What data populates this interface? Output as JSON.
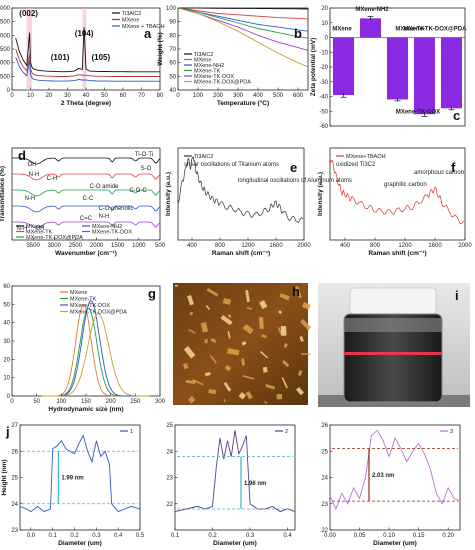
{
  "figure": {
    "panels": [
      {
        "id": "a",
        "label": "a"
      },
      {
        "id": "b",
        "label": "b"
      },
      {
        "id": "c",
        "label": "c"
      },
      {
        "id": "d",
        "label": "d"
      },
      {
        "id": "e",
        "label": "e"
      },
      {
        "id": "f",
        "label": "f"
      },
      {
        "id": "g",
        "label": "g"
      },
      {
        "id": "h",
        "label": "h"
      },
      {
        "id": "i",
        "label": "i"
      },
      {
        "id": "j",
        "label": "j"
      }
    ]
  },
  "chart_data": [
    {
      "panel": "a",
      "type": "line",
      "title": "",
      "xlabel": "2 Theta (degree)",
      "ylabel": "Intensity (a.u.)",
      "xlim": [
        0,
        80
      ],
      "ylim": [
        0,
        3000
      ],
      "xticks": [
        0,
        10,
        20,
        30,
        40,
        50,
        60,
        70,
        80
      ],
      "yticks": [
        0,
        500,
        1000,
        1500,
        2000,
        2500,
        3000
      ],
      "legend_position": "top-right",
      "series": [
        {
          "name": "Ti3AlC2",
          "color": "#111111",
          "x": [
            2,
            4,
            6,
            8,
            9.5,
            10,
            11,
            12,
            14,
            18,
            22,
            26,
            30,
            34,
            36,
            38,
            39,
            40,
            42,
            46,
            50,
            55,
            60,
            65,
            70,
            75,
            80
          ],
          "y": [
            1900,
            1400,
            1100,
            900,
            2100,
            1000,
            800,
            760,
            720,
            690,
            680,
            670,
            670,
            700,
            790,
            750,
            2300,
            760,
            690,
            680,
            675,
            670,
            670,
            665,
            665,
            665,
            665
          ]
        },
        {
          "name": "MXene",
          "color": "#b0353a",
          "x": [
            2,
            4,
            6,
            8,
            9.5,
            10,
            11,
            12,
            14,
            18,
            22,
            26,
            30,
            34,
            36,
            38,
            40,
            42,
            46,
            50,
            55,
            60,
            65,
            70,
            75,
            80
          ],
          "y": [
            1500,
            1100,
            850,
            700,
            1300,
            750,
            600,
            560,
            530,
            510,
            500,
            495,
            495,
            520,
            560,
            540,
            540,
            520,
            505,
            500,
            495,
            495,
            495,
            495,
            495,
            495
          ]
        },
        {
          "name": "MXene + TBAOH",
          "color": "#2f58c8",
          "x": [
            2,
            4,
            6,
            8,
            9.5,
            10,
            11,
            12,
            14,
            18,
            22,
            26,
            30,
            34,
            36,
            38,
            40,
            42,
            46,
            50,
            55,
            60,
            65,
            70,
            75,
            80
          ],
          "y": [
            1200,
            850,
            650,
            520,
            1100,
            560,
            420,
            390,
            360,
            340,
            330,
            325,
            325,
            345,
            385,
            365,
            365,
            345,
            330,
            325,
            322,
            322,
            322,
            322,
            322,
            322
          ]
        }
      ],
      "annotations": [
        "(002)",
        "(101)",
        "(104)",
        "(105)"
      ]
    },
    {
      "panel": "b",
      "type": "line",
      "title": "",
      "xlabel": "Temperature (°C)",
      "ylabel": "Weight (%)",
      "xlim": [
        0,
        650
      ],
      "ylim": [
        40,
        100
      ],
      "xticks": [
        0,
        100,
        200,
        300,
        400,
        500,
        600
      ],
      "yticks": [
        40,
        50,
        60,
        70,
        80,
        90,
        100
      ],
      "legend_position": "bottom-left",
      "series": [
        {
          "name": "Ti3AlC2",
          "color": "#111111",
          "x": [
            0,
            100,
            200,
            300,
            400,
            500,
            600,
            650
          ],
          "y": [
            100,
            100,
            99.8,
            99.7,
            99.6,
            99.5,
            99.4,
            99.3
          ]
        },
        {
          "name": "MXene",
          "color": "#e0414a",
          "x": [
            0,
            100,
            200,
            300,
            400,
            500,
            600,
            650
          ],
          "y": [
            100,
            98,
            96,
            95,
            94,
            93,
            92.5,
            92
          ]
        },
        {
          "name": "MXene-NH2",
          "color": "#2f58c8",
          "x": [
            0,
            100,
            200,
            300,
            400,
            500,
            600,
            650
          ],
          "y": [
            100,
            97,
            94,
            91,
            88,
            86,
            84,
            83
          ]
        },
        {
          "name": "MXene-TK",
          "color": "#1f9d4a",
          "x": [
            0,
            100,
            200,
            300,
            400,
            500,
            600,
            650
          ],
          "y": [
            100,
            97,
            93,
            89,
            85,
            82,
            79,
            78
          ]
        },
        {
          "name": "MXene-TK-DOX",
          "color": "#9c3fd1",
          "x": [
            0,
            100,
            200,
            300,
            400,
            500,
            600,
            650
          ],
          "y": [
            100,
            96,
            91,
            86,
            80,
            75,
            71,
            69
          ]
        },
        {
          "name": "MXene-TK-DOX@PDA",
          "color": "#c8a02a",
          "x": [
            0,
            100,
            200,
            300,
            400,
            500,
            600,
            650
          ],
          "y": [
            100,
            96,
            90,
            83,
            75,
            67,
            60,
            57
          ]
        }
      ]
    },
    {
      "panel": "c",
      "type": "bar",
      "title": "",
      "xlabel": "",
      "ylabel": "Zeta potential (mV)",
      "ylim": [
        -60,
        20
      ],
      "yticks": [
        -60,
        -50,
        -40,
        -30,
        -20,
        -10,
        0,
        10,
        20
      ],
      "categories": [
        "MXene",
        "MXene-NH2",
        "MXene-TK",
        "MXene-TK-DOX",
        "MXene-TK-DOX@PDA"
      ],
      "values": [
        -39,
        13,
        -42,
        -52,
        -48
      ],
      "errors": [
        1.5,
        1.2,
        1.0,
        1.5,
        1.0
      ],
      "color": "#8a2be2"
    },
    {
      "panel": "d",
      "type": "line",
      "title": "",
      "xlabel": "Wavenumber (cm⁻¹)",
      "ylabel": "Transmittance (%)",
      "xlim": [
        4000,
        500
      ],
      "xticks": [
        3500,
        3000,
        2500,
        2000,
        1500,
        1000,
        500
      ],
      "legend_position": "bottom-left",
      "series": [
        {
          "name": "MXene",
          "color": "#111111"
        },
        {
          "name": "MXene-TK",
          "color": "#e0414a"
        },
        {
          "name": "MXene-TK-DOX@PDA",
          "color": "#1f9d4a"
        },
        {
          "name": "MXene-NH2",
          "color": "#2f58c8"
        },
        {
          "name": "MXene-TK-DOX",
          "color": "#9c3fd1"
        }
      ],
      "annotations": [
        "Ti-O-Ti",
        "S-O",
        "OH",
        "N-H",
        "C-H",
        "C-O amide",
        "C-O-C",
        "N-H",
        "C-C",
        "C-O phenolic",
        "C=C",
        "N-H",
        "N-H",
        "OH"
      ]
    },
    {
      "panel": "e",
      "type": "line",
      "title": "",
      "xlabel": "Raman shift (cm⁻¹)",
      "ylabel": "Intensity (a.u.)",
      "xlim": [
        200,
        2000
      ],
      "xticks": [
        400,
        800,
        1200,
        1600,
        2000
      ],
      "legend_position": "top-left",
      "series": [
        {
          "name": "Ti3AlC2",
          "color": "#333333",
          "x": [
            200,
            260,
            300,
            340,
            380,
            420,
            450,
            480,
            520,
            560,
            600,
            650,
            700,
            750,
            800,
            900,
            1000,
            1100,
            1200,
            1300,
            1400,
            1500,
            1550,
            1600,
            1650,
            1700,
            1800,
            1900,
            2000
          ],
          "y": [
            0.4,
            0.62,
            0.74,
            0.88,
            0.8,
            0.92,
            0.78,
            0.7,
            0.62,
            0.56,
            0.52,
            0.48,
            0.44,
            0.42,
            0.4,
            0.36,
            0.34,
            0.3,
            0.28,
            0.27,
            0.3,
            0.34,
            0.38,
            0.4,
            0.36,
            0.3,
            0.24,
            0.22,
            0.21
          ]
        }
      ],
      "annotations": [
        "shear oscillations of Titanium atoms",
        "longitudinal oscillations of Aluminum atoms"
      ]
    },
    {
      "panel": "f",
      "type": "line",
      "title": "",
      "xlabel": "Raman shift (cm⁻¹)",
      "ylabel": "Intensity (a.u.)",
      "xlim": [
        200,
        2000
      ],
      "xticks": [
        400,
        800,
        1200,
        1600,
        2000
      ],
      "legend_position": "top-left",
      "series": [
        {
          "name": "MXene+TBAOH",
          "color": "#e03030",
          "x": [
            200,
            240,
            280,
            320,
            360,
            400,
            450,
            500,
            600,
            700,
            800,
            900,
            1000,
            1100,
            1200,
            1300,
            1400,
            1500,
            1550,
            1600,
            1650,
            1700,
            1800,
            1900,
            2000
          ],
          "y": [
            0.9,
            0.82,
            0.7,
            0.6,
            0.52,
            0.5,
            0.46,
            0.44,
            0.4,
            0.36,
            0.33,
            0.31,
            0.3,
            0.32,
            0.34,
            0.36,
            0.42,
            0.48,
            0.52,
            0.56,
            0.48,
            0.4,
            0.3,
            0.22,
            0.18
          ]
        }
      ],
      "annotations": [
        "oxidized Ti3C2",
        "graphitic carbon",
        "amorphous carbon"
      ]
    },
    {
      "panel": "g",
      "type": "line",
      "title": "",
      "xlabel": "Hydrodynamic size (nm)",
      "ylabel": "Intensity (a.u.)",
      "xlim": [
        0,
        300
      ],
      "ylim": [
        0,
        60
      ],
      "xticks": [
        0,
        50,
        100,
        150,
        200,
        250,
        300
      ],
      "yticks": [
        0,
        10,
        20,
        30,
        40,
        50,
        60
      ],
      "legend_position": "top-left",
      "series": [
        {
          "name": "MXene",
          "color": "#e07b30",
          "center": 145,
          "width": 22,
          "peak": 50
        },
        {
          "name": "MXene-TK",
          "color": "#1f9d4a",
          "center": 155,
          "width": 24,
          "peak": 48
        },
        {
          "name": "MXene-TK-DOX",
          "color": "#2f58c8",
          "center": 160,
          "width": 25,
          "peak": 52
        },
        {
          "name": "MXene-TK-DOX@PDA",
          "color": "#c8a02a",
          "center": 175,
          "width": 30,
          "peak": 45
        }
      ]
    },
    {
      "panel": "j1",
      "type": "line",
      "title": "",
      "xlabel": "Diameter (um)",
      "ylabel": "Height (nm)",
      "xlim": [
        -0.05,
        0.5
      ],
      "ylim": [
        23,
        27
      ],
      "xticks": [
        0.0,
        0.1,
        0.2,
        0.3,
        0.4,
        0.5
      ],
      "yticks": [
        23,
        24,
        25,
        26,
        27
      ],
      "series": [
        {
          "name": "1",
          "color": "#2f58c8",
          "x": [
            -0.05,
            -0.02,
            0.0,
            0.03,
            0.06,
            0.09,
            0.1,
            0.12,
            0.14,
            0.16,
            0.18,
            0.2,
            0.22,
            0.24,
            0.26,
            0.28,
            0.3,
            0.32,
            0.34,
            0.36,
            0.37,
            0.4,
            0.43,
            0.46,
            0.5
          ],
          "y": [
            23.9,
            23.8,
            23.7,
            23.9,
            23.7,
            23.8,
            26.1,
            26.2,
            26.4,
            26.1,
            26.0,
            25.9,
            26.3,
            26.6,
            26.0,
            25.6,
            26.4,
            25.8,
            26.0,
            25.5,
            24.0,
            23.7,
            23.8,
            23.9,
            23.8
          ]
        }
      ],
      "annotations": [
        "1.99 nm"
      ]
    },
    {
      "panel": "j2",
      "type": "line",
      "title": "",
      "xlabel": "Diameter (um)",
      "ylabel": "",
      "xlim": [
        0.1,
        0.42
      ],
      "ylim": [
        21,
        25
      ],
      "xticks": [
        0.1,
        0.2,
        0.3,
        0.4
      ],
      "yticks": [
        22,
        23,
        24,
        25
      ],
      "series": [
        {
          "name": "2",
          "color": "#5a3a8c",
          "x": [
            0.1,
            0.13,
            0.16,
            0.18,
            0.2,
            0.21,
            0.22,
            0.23,
            0.24,
            0.25,
            0.26,
            0.27,
            0.28,
            0.29,
            0.3,
            0.31,
            0.32,
            0.34,
            0.36,
            0.38,
            0.4,
            0.42
          ],
          "y": [
            21.7,
            21.8,
            21.9,
            21.8,
            21.9,
            23.4,
            24.5,
            23.7,
            24.4,
            23.8,
            24.8,
            23.9,
            24.2,
            24.6,
            22.0,
            21.9,
            21.8,
            21.8,
            21.9,
            21.7,
            21.8,
            21.7
          ]
        }
      ],
      "annotations": [
        "1.96 nm"
      ]
    },
    {
      "panel": "j3",
      "type": "line",
      "title": "",
      "xlabel": "Diameter (um)",
      "ylabel": "",
      "xlim": [
        0.0,
        0.22
      ],
      "ylim": [
        22,
        26
      ],
      "xticks": [
        0.0,
        0.05,
        0.1,
        0.15,
        0.2
      ],
      "yticks": [
        22,
        23,
        24,
        25,
        26
      ],
      "series": [
        {
          "name": "3",
          "color": "#c070d8",
          "x": [
            0.0,
            0.01,
            0.02,
            0.03,
            0.04,
            0.05,
            0.06,
            0.07,
            0.08,
            0.09,
            0.1,
            0.11,
            0.12,
            0.13,
            0.14,
            0.15,
            0.16,
            0.17,
            0.18,
            0.19,
            0.2,
            0.21,
            0.22
          ],
          "y": [
            23.3,
            22.8,
            23.4,
            23.0,
            23.6,
            23.2,
            24.0,
            25.6,
            25.8,
            25.4,
            24.8,
            25.5,
            25.1,
            24.6,
            25.0,
            25.3,
            24.9,
            24.3,
            23.4,
            23.0,
            23.6,
            23.2,
            23.1
          ]
        }
      ],
      "annotations": [
        "2.03 nm"
      ]
    }
  ],
  "photos": {
    "h": {
      "label": "h",
      "description_name": "AFM topography image"
    },
    "i": {
      "label": "i",
      "description_name": "vial photograph with laser path"
    }
  },
  "colors": {
    "axis": "#222222",
    "bar": "#8a2be2",
    "guide": "#3ab6c8",
    "arrow_j3": "#8b2b10"
  }
}
